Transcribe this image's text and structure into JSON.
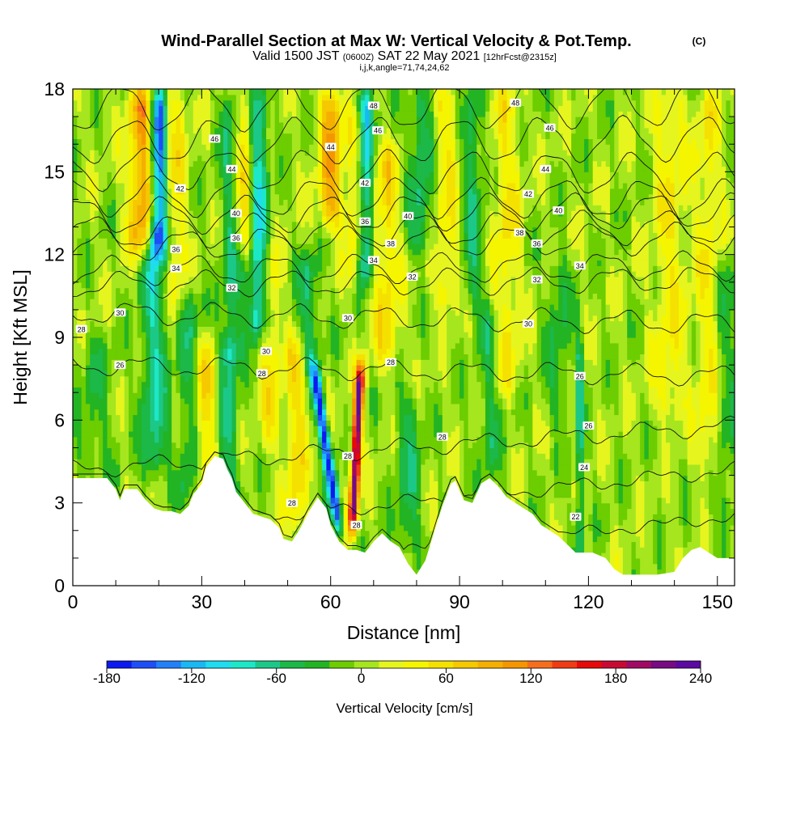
{
  "chart_data": {
    "type": "heatmap",
    "title": "Wind-Parallel Section at Max W: Vertical Velocity & Pot.Temp.",
    "title_mark": "(C)",
    "subtitle_parts": [
      {
        "text": "Valid 1500 JST ",
        "small": false
      },
      {
        "text": "(0600Z)",
        "small": true
      },
      {
        "text": " SAT 22 May 2021 ",
        "small": false
      },
      {
        "text": "[12hrFcst@2315z]",
        "small": true
      }
    ],
    "subtitle2": "i,j,k,angle=71,74,24,62",
    "xlabel": "Distance [nm]",
    "ylabel": "Height [Kft MSL]",
    "xlim": [
      0,
      154
    ],
    "ylim": [
      0,
      18
    ],
    "x_ticks": [
      0,
      30,
      60,
      90,
      120,
      150
    ],
    "y_ticks": [
      0,
      3,
      6,
      9,
      12,
      15,
      18
    ],
    "colorbar": {
      "label": "Vertical Velocity [cm/s]",
      "min": -180,
      "max": 240,
      "tick_labels": [
        "-180",
        "-120",
        "-60",
        "0",
        "60",
        "120",
        "180",
        "240"
      ],
      "colors": [
        "#0c1af0",
        "#1e4ef5",
        "#2280f8",
        "#19b8f5",
        "#1fdcf0",
        "#1ce8c8",
        "#1cc888",
        "#1cb848",
        "#23b423",
        "#6ccd00",
        "#a6e61e",
        "#e6f51e",
        "#f5f500",
        "#f5e100",
        "#f5c800",
        "#f5af00",
        "#f59600",
        "#f56e1e",
        "#f03c14",
        "#e60a0a",
        "#c80a32",
        "#a00a64",
        "#780a82",
        "#5a0aa0"
      ]
    },
    "x_label_value": 0,
    "terrain_height_kft": [
      [
        0,
        3.9
      ],
      [
        4,
        3.9
      ],
      [
        8,
        3.9
      ],
      [
        10,
        3.5
      ],
      [
        11,
        3.1
      ],
      [
        12,
        3.5
      ],
      [
        15,
        3.5
      ],
      [
        17,
        3.1
      ],
      [
        19,
        2.8
      ],
      [
        21,
        2.7
      ],
      [
        23,
        2.7
      ],
      [
        25,
        2.6
      ],
      [
        27,
        2.9
      ],
      [
        28,
        3.3
      ],
      [
        30,
        3.7
      ],
      [
        31,
        4.3
      ],
      [
        33,
        4.7
      ],
      [
        35,
        4.6
      ],
      [
        36,
        4.2
      ],
      [
        37,
        3.9
      ],
      [
        38,
        3.4
      ],
      [
        40,
        3.0
      ],
      [
        42,
        2.6
      ],
      [
        44,
        2.5
      ],
      [
        46,
        2.4
      ],
      [
        48,
        2.1
      ],
      [
        49,
        1.7
      ],
      [
        51,
        1.6
      ],
      [
        53,
        2.1
      ],
      [
        55,
        2.7
      ],
      [
        57,
        3.2
      ],
      [
        59,
        2.8
      ],
      [
        60,
        2.2
      ],
      [
        62,
        1.6
      ],
      [
        64,
        1.3
      ],
      [
        66,
        1.3
      ],
      [
        68,
        1.2
      ],
      [
        70,
        1.6
      ],
      [
        72,
        1.9
      ],
      [
        74,
        1.6
      ],
      [
        76,
        1.4
      ],
      [
        78,
        0.8
      ],
      [
        80,
        0.4
      ],
      [
        82,
        0.9
      ],
      [
        84,
        1.9
      ],
      [
        86,
        2.9
      ],
      [
        88,
        3.7
      ],
      [
        89,
        3.8
      ],
      [
        91,
        3.1
      ],
      [
        93,
        3.0
      ],
      [
        95,
        3.7
      ],
      [
        97,
        3.9
      ],
      [
        99,
        3.6
      ],
      [
        101,
        3.2
      ],
      [
        103,
        3.0
      ],
      [
        105,
        2.8
      ],
      [
        107,
        2.6
      ],
      [
        109,
        2.2
      ],
      [
        111,
        2.0
      ],
      [
        113,
        1.8
      ],
      [
        115,
        1.5
      ],
      [
        117,
        1.2
      ],
      [
        119,
        1.2
      ],
      [
        121,
        1.2
      ],
      [
        124,
        1.0
      ],
      [
        126,
        0.6
      ],
      [
        128,
        0.4
      ],
      [
        132,
        0.4
      ],
      [
        136,
        0.4
      ],
      [
        140,
        0.5
      ],
      [
        142,
        1.0
      ],
      [
        144,
        1.3
      ],
      [
        146,
        1.4
      ],
      [
        148,
        1.2
      ],
      [
        150,
        1.0
      ],
      [
        154,
        1.0
      ]
    ],
    "w_features": [
      {
        "x": 20,
        "w": 1.8,
        "amp": -150,
        "z0": 12,
        "z1": 18
      },
      {
        "x": 19,
        "w": 3.0,
        "amp": -70,
        "z0": 4,
        "z1": 13
      },
      {
        "x": 16,
        "w": 3.0,
        "amp": 100,
        "z0": 12,
        "z1": 18
      },
      {
        "x": 24,
        "w": 2.5,
        "amp": 45,
        "z0": 10,
        "z1": 18
      },
      {
        "x": 27,
        "w": 2.5,
        "amp": -45,
        "z0": 3,
        "z1": 11
      },
      {
        "x": 31,
        "w": 3.0,
        "amp": 55,
        "z0": 3,
        "z1": 9
      },
      {
        "x": 37,
        "w": 2.5,
        "amp": -55,
        "z0": 8,
        "z1": 18
      },
      {
        "x": 36,
        "w": 2.5,
        "amp": -55,
        "z0": 3,
        "z1": 9
      },
      {
        "x": 43,
        "w": 2.2,
        "amp": -100,
        "z0": 9,
        "z1": 18
      },
      {
        "x": 40,
        "w": 2.5,
        "amp": 75,
        "z0": 12,
        "z1": 18
      },
      {
        "x": 46,
        "w": 2.5,
        "amp": 45,
        "z0": 5,
        "z1": 12
      },
      {
        "x": 52,
        "w": 2.5,
        "amp": 55,
        "z0": 2,
        "z1": 9
      },
      {
        "x": 55,
        "w": 2.5,
        "amp": -55,
        "z0": 8,
        "z1": 12
      },
      {
        "x": 60,
        "w": 2.8,
        "amp": 90,
        "z0": 13,
        "z1": 18
      },
      {
        "x": 68,
        "w": 1.8,
        "amp": -110,
        "z0": 11,
        "z1": 18
      },
      {
        "x": 66,
        "w": 2.5,
        "amp": 50,
        "z0": 11,
        "z1": 17
      },
      {
        "x": 73,
        "w": 3.0,
        "amp": 55,
        "z0": 8,
        "z1": 16
      },
      {
        "x": 78,
        "w": 3.0,
        "amp": -45,
        "z0": 1,
        "z1": 7
      },
      {
        "x": 81,
        "w": 3.0,
        "amp": -55,
        "z0": 12,
        "z1": 18
      },
      {
        "x": 87,
        "w": 3.0,
        "amp": 45,
        "z0": 10,
        "z1": 18
      },
      {
        "x": 93,
        "w": 2.5,
        "amp": -50,
        "z0": 10,
        "z1": 18
      },
      {
        "x": 97,
        "w": 2.5,
        "amp": -40,
        "z0": 4,
        "z1": 10
      },
      {
        "x": 101,
        "w": 3.0,
        "amp": 45,
        "z0": 7,
        "z1": 18
      },
      {
        "x": 113,
        "w": 3.0,
        "amp": -35,
        "z0": 6,
        "z1": 12
      },
      {
        "x": 118,
        "w": 1.0,
        "amp": -60,
        "z0": 1,
        "z1": 9
      },
      {
        "x": 139,
        "w": 4.0,
        "amp": 40,
        "z0": 6,
        "z1": 18
      },
      {
        "x": 148,
        "w": 3.0,
        "amp": 40,
        "z0": 4,
        "z1": 18
      },
      {
        "x": 152,
        "w": 2.5,
        "amp": -35,
        "z0": 2,
        "z1": 12
      },
      {
        "x": 5,
        "w": 4.0,
        "amp": -30,
        "z0": 4,
        "z1": 9
      }
    ],
    "updraft_plume": {
      "x_low": 65,
      "x_high": 67,
      "z_low": 2,
      "z_high": 8,
      "w": 1.1,
      "amp": 220
    },
    "downdraft_plume": {
      "x_low": 62,
      "x_high": 56,
      "z_low": 2,
      "z_high": 8,
      "w": 1.2,
      "amp": -170
    },
    "theta_contours": [
      {
        "level": 22,
        "z_left": 0,
        "z_right": 2.5
      },
      {
        "level": 24,
        "z_left": 1.8,
        "z_right": 4.2
      },
      {
        "level": 26,
        "z_left": 4.2,
        "z_right": 5.8
      },
      {
        "level": 28,
        "z_left": 8.0,
        "z_right": 7.6
      },
      {
        "level": 30,
        "z_left": 9.9,
        "z_right": 9.5
      },
      {
        "level": 32,
        "z_left": 10.9,
        "z_right": 11.1
      },
      {
        "level": 34,
        "z_left": 11.4,
        "z_right": 11.6
      },
      {
        "level": 36,
        "z_left": 12.3,
        "z_right": 12.6
      },
      {
        "level": 38,
        "z_left": 12.8,
        "z_right": 13.0
      },
      {
        "level": 40,
        "z_left": 13.4,
        "z_right": 13.6
      },
      {
        "level": 42,
        "z_left": 14.1,
        "z_right": 14.0
      },
      {
        "level": 44,
        "z_left": 15.1,
        "z_right": 14.9
      },
      {
        "level": 46,
        "z_left": 16.1,
        "z_right": 16.2
      },
      {
        "level": 48,
        "z_left": 17.3,
        "z_right": 17.5
      }
    ],
    "contour_labels": [
      {
        "text": "22",
        "x": 117,
        "z": 2.5
      },
      {
        "text": "24",
        "x": 119,
        "z": 4.3
      },
      {
        "text": "26",
        "x": 120,
        "z": 5.8
      },
      {
        "text": "26",
        "x": 11,
        "z": 8.0
      },
      {
        "text": "26",
        "x": 118,
        "z": 7.6
      },
      {
        "text": "28",
        "x": 2,
        "z": 9.3
      },
      {
        "text": "28",
        "x": 44,
        "z": 7.7
      },
      {
        "text": "28",
        "x": 74,
        "z": 8.1
      },
      {
        "text": "28",
        "x": 86,
        "z": 5.4
      },
      {
        "text": "28",
        "x": 51,
        "z": 3.0
      },
      {
        "text": "28",
        "x": 64,
        "z": 4.7
      },
      {
        "text": "28",
        "x": 66,
        "z": 2.2
      },
      {
        "text": "30",
        "x": 11,
        "z": 9.9
      },
      {
        "text": "30",
        "x": 45,
        "z": 8.5
      },
      {
        "text": "30",
        "x": 64,
        "z": 9.7
      },
      {
        "text": "30",
        "x": 106,
        "z": 9.5
      },
      {
        "text": "32",
        "x": 37,
        "z": 10.8
      },
      {
        "text": "32",
        "x": 79,
        "z": 11.2
      },
      {
        "text": "32",
        "x": 108,
        "z": 11.1
      },
      {
        "text": "34",
        "x": 24,
        "z": 11.5
      },
      {
        "text": "34",
        "x": 70,
        "z": 11.8
      },
      {
        "text": "34",
        "x": 118,
        "z": 11.6
      },
      {
        "text": "36",
        "x": 24,
        "z": 12.2
      },
      {
        "text": "36",
        "x": 38,
        "z": 12.6
      },
      {
        "text": "36",
        "x": 68,
        "z": 13.2
      },
      {
        "text": "36",
        "x": 108,
        "z": 12.4
      },
      {
        "text": "38",
        "x": 74,
        "z": 12.4
      },
      {
        "text": "38",
        "x": 104,
        "z": 12.8
      },
      {
        "text": "40",
        "x": 38,
        "z": 13.5
      },
      {
        "text": "40",
        "x": 78,
        "z": 13.4
      },
      {
        "text": "40",
        "x": 113,
        "z": 13.6
      },
      {
        "text": "42",
        "x": 25,
        "z": 14.4
      },
      {
        "text": "42",
        "x": 68,
        "z": 14.6
      },
      {
        "text": "42",
        "x": 106,
        "z": 14.2
      },
      {
        "text": "44",
        "x": 37,
        "z": 15.1
      },
      {
        "text": "44",
        "x": 60,
        "z": 15.9
      },
      {
        "text": "44",
        "x": 110,
        "z": 15.1
      },
      {
        "text": "46",
        "x": 33,
        "z": 16.2
      },
      {
        "text": "46",
        "x": 71,
        "z": 16.5
      },
      {
        "text": "46",
        "x": 111,
        "z": 16.6
      },
      {
        "text": "48",
        "x": 70,
        "z": 17.4
      },
      {
        "text": "48",
        "x": 103,
        "z": 17.5
      }
    ]
  }
}
